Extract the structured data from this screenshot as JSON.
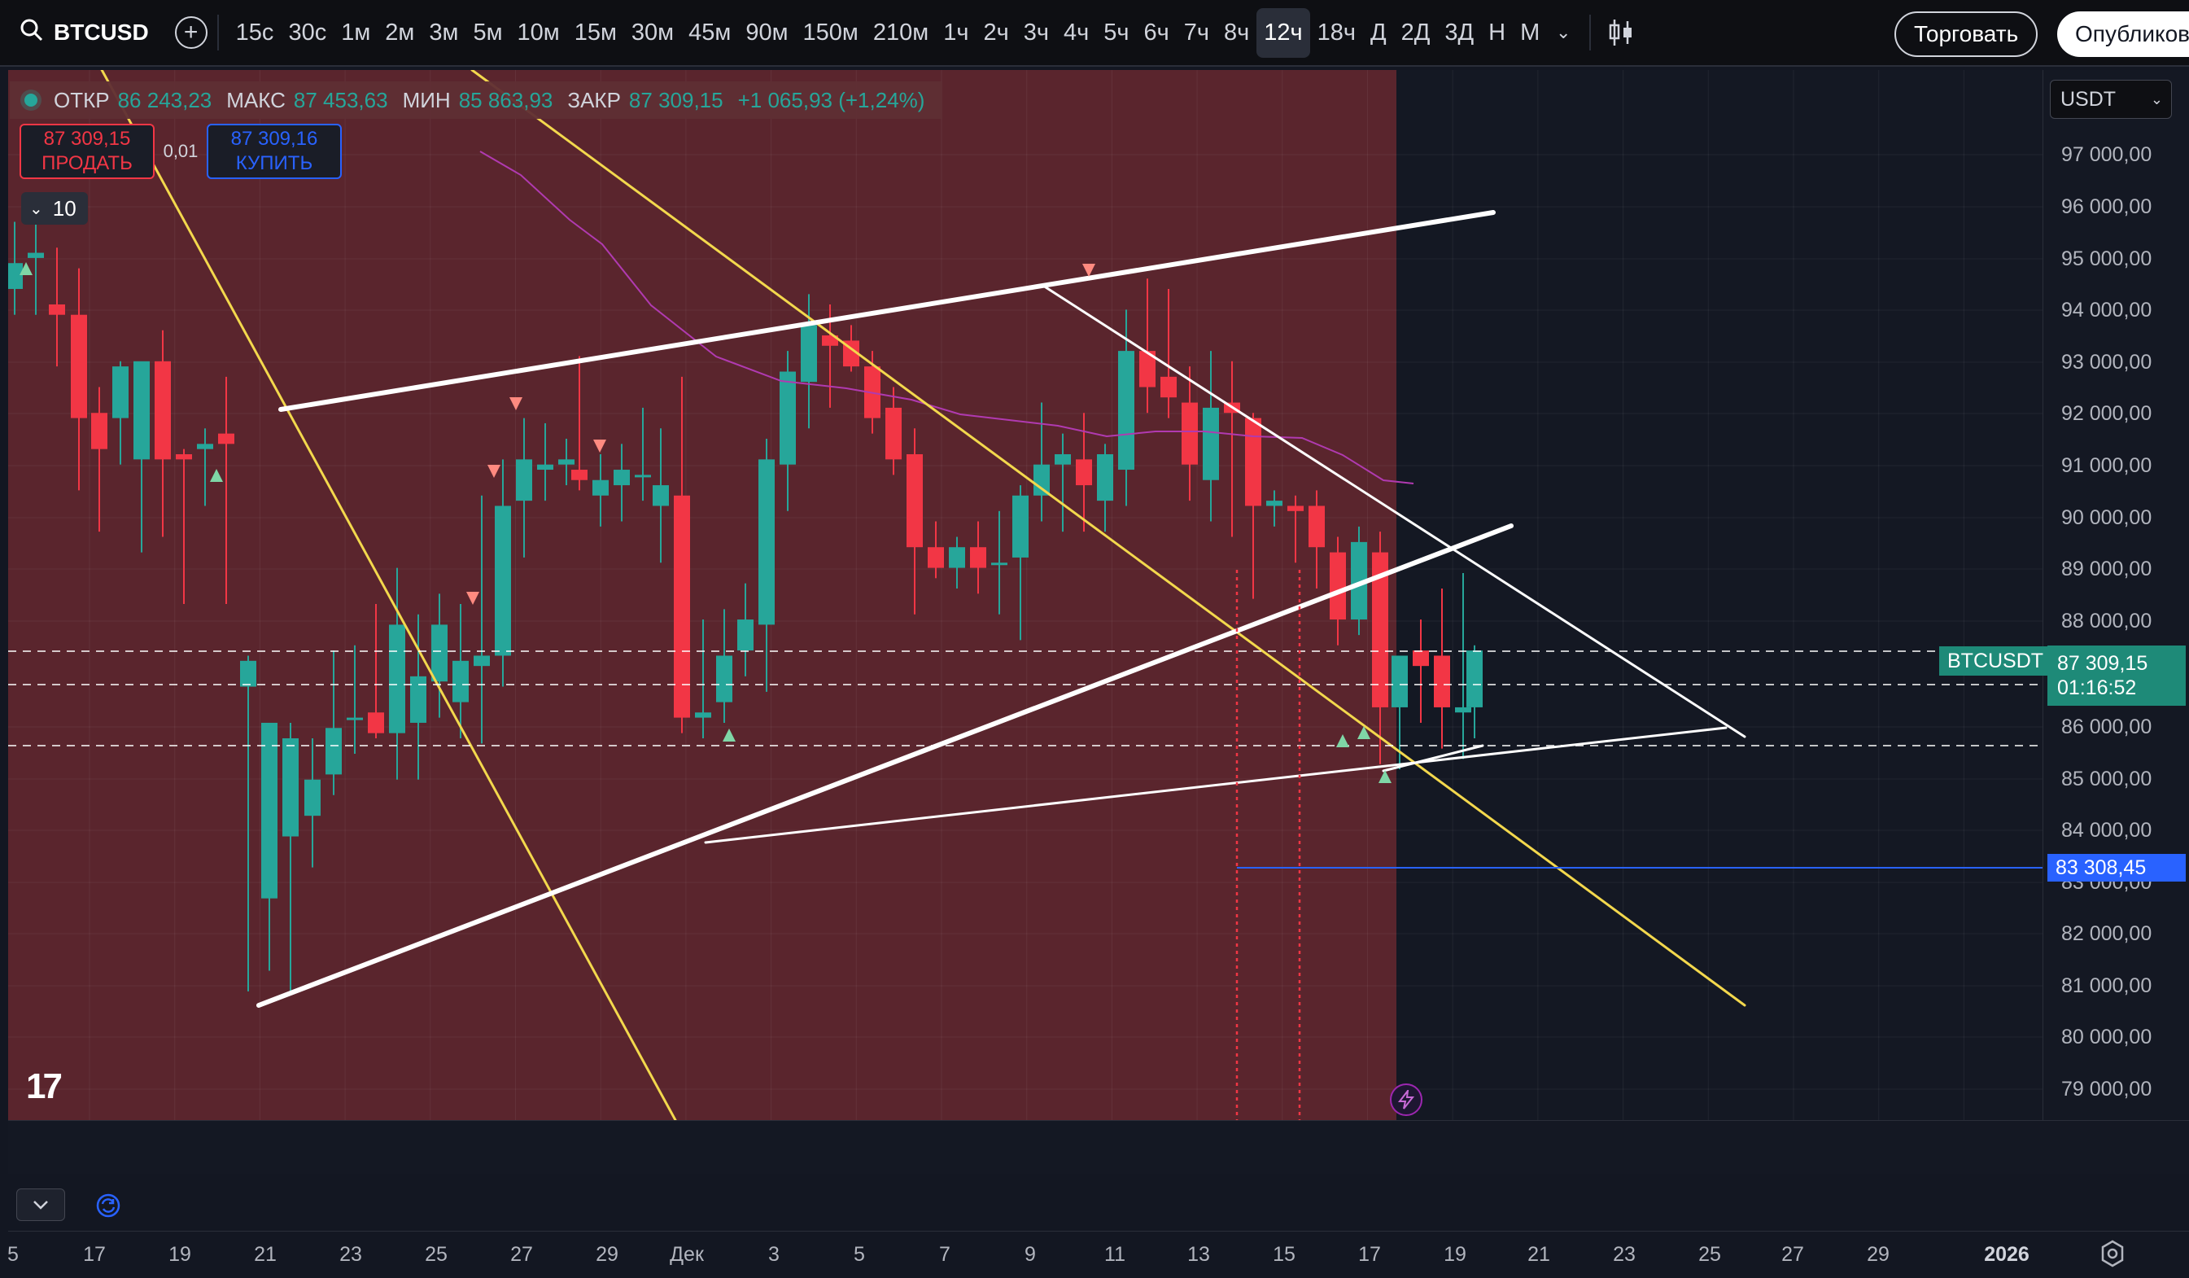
{
  "symbol": "BTCUSD",
  "intervals": [
    "15с",
    "30с",
    "1м",
    "2м",
    "3м",
    "5м",
    "10м",
    "15м",
    "30м",
    "45м",
    "90м",
    "150м",
    "210м",
    "1ч",
    "2ч",
    "3ч",
    "4ч",
    "5ч",
    "6ч",
    "7ч",
    "8ч",
    "12ч",
    "18ч",
    "Д",
    "2Д",
    "3Д",
    "Н",
    "М"
  ],
  "active_interval": "12ч",
  "actions": {
    "trade": "Торговать",
    "publish": "Опубликовать"
  },
  "currency": "USDT",
  "legend": {
    "open_label": "ОТКР",
    "open": "86 243,23",
    "high_label": "МАКС",
    "high": "87 453,63",
    "low_label": "МИН",
    "low": "85 863,93",
    "close_label": "ЗАКР",
    "close": "87 309,15",
    "change": "+1 065,93 (+1,24%)"
  },
  "trade": {
    "sell_price": "87 309,15",
    "sell_label": "ПРОДАТЬ",
    "spread": "0,01",
    "buy_price": "87 309,16",
    "buy_label": "КУПИТЬ"
  },
  "quantity": "10",
  "price_axis": {
    "labels": [
      "97 000,00",
      "96 000,00",
      "95 000,00",
      "94 000,00",
      "93 000,00",
      "92 000,00",
      "91 000,00",
      "90 000,00",
      "89 000,00",
      "88 000,00",
      "86 000,00",
      "85 000,00",
      "84 000,00",
      "83 000,00",
      "82 000,00",
      "81 000,00",
      "80 000,00",
      "79 000,00"
    ],
    "series_tag": "BTCUSDT",
    "last_price": "87 309,15",
    "countdown": "01:16:52",
    "alert_price": "83 308,45"
  },
  "time_axis": [
    "5",
    "17",
    "19",
    "21",
    "23",
    "25",
    "27",
    "29",
    "Дек",
    "3",
    "5",
    "7",
    "9",
    "11",
    "13",
    "15",
    "17",
    "19",
    "21",
    "23",
    "25",
    "27",
    "29",
    "2026"
  ],
  "colors": {
    "up": "#26a69a",
    "down": "#f23645",
    "highlight": "rgba(128,44,50,0.66)",
    "trendline_white": "#ffffff",
    "trendline_yellow": "#f3d84d",
    "ma": "#b03ab0",
    "alert": "#2962ff"
  },
  "icons": {
    "search": "search-icon",
    "add": "add-symbol-icon",
    "chart_type": "candles-icon",
    "flash": "flash-icon",
    "refresh": "refresh-icon",
    "settings": "gear-icon",
    "collapse": "chevron-down-icon"
  }
}
